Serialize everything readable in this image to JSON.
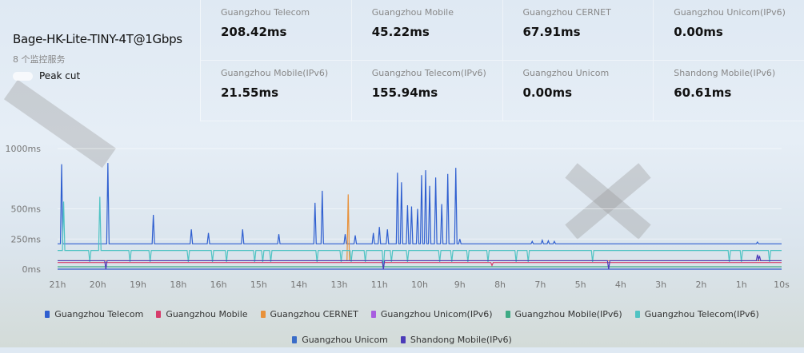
{
  "server": {
    "name": "Bage-HK-Lite-TINY-4T@1Gbps",
    "service_count": "8 个监控服务",
    "peak_cut_label": "Peak cut",
    "peak_cut_on": false
  },
  "stats": [
    {
      "label": "Guangzhou Telecom",
      "value": "208.42ms"
    },
    {
      "label": "Guangzhou Mobile",
      "value": "45.22ms"
    },
    {
      "label": "Guangzhou CERNET",
      "value": "67.91ms"
    },
    {
      "label": "Guangzhou Unicom(IPv6)",
      "value": "0.00ms"
    },
    {
      "label": "Guangzhou Mobile(IPv6)",
      "value": "21.55ms"
    },
    {
      "label": "Guangzhou Telecom(IPv6)",
      "value": "155.94ms"
    },
    {
      "label": "Guangzhou Unicom",
      "value": "0.00ms"
    },
    {
      "label": "Shandong Mobile(IPv6)",
      "value": "60.61ms"
    }
  ],
  "chart_data": {
    "type": "line",
    "ylim": [
      0,
      1000
    ],
    "y_ticks": [
      "0ms",
      "250ms",
      "500ms",
      "1000ms"
    ],
    "y_tick_values": [
      0,
      250,
      500,
      1000
    ],
    "x_ticks": [
      "21h",
      "20h",
      "19h",
      "18h",
      "16h",
      "15h",
      "14h",
      "13h",
      "11h",
      "10h",
      "9h",
      "8h",
      "7h",
      "5h",
      "4h",
      "3h",
      "2h",
      "1h",
      "10s"
    ],
    "x_tick_hours_ago": [
      21,
      20,
      19,
      18,
      16,
      15,
      14,
      13,
      11,
      10,
      9,
      8,
      7,
      5,
      4,
      3,
      2,
      1,
      0
    ],
    "grid": true,
    "legend_position": "bottom",
    "series": [
      {
        "name": "Guangzhou Telecom",
        "color": "#2f5fd0",
        "baseline": 210,
        "spikes": [
          [
            20.9,
            870
          ],
          [
            19.75,
            880
          ],
          [
            18.62,
            450
          ],
          [
            17.35,
            330
          ],
          [
            16.5,
            300
          ],
          [
            15.4,
            330
          ],
          [
            14.5,
            290
          ],
          [
            13.6,
            550
          ],
          [
            13.42,
            650
          ],
          [
            12.7,
            290
          ],
          [
            12.2,
            280
          ],
          [
            11.3,
            300
          ],
          [
            11.0,
            350
          ],
          [
            10.8,
            330
          ],
          [
            10.55,
            800
          ],
          [
            10.45,
            720
          ],
          [
            10.3,
            530
          ],
          [
            10.2,
            520
          ],
          [
            10.05,
            500
          ],
          [
            9.95,
            780
          ],
          [
            9.85,
            820
          ],
          [
            9.75,
            690
          ],
          [
            9.6,
            760
          ],
          [
            9.45,
            540
          ],
          [
            9.3,
            790
          ],
          [
            9.1,
            840
          ],
          [
            9.0,
            250
          ],
          [
            7.2,
            230
          ],
          [
            6.9,
            240
          ],
          [
            6.6,
            235
          ],
          [
            6.3,
            230
          ],
          [
            0.6,
            225
          ]
        ]
      },
      {
        "name": "Guangzhou Mobile",
        "color": "#d63c6b",
        "baseline": 55,
        "spikes": [
          [
            8.2,
            30
          ]
        ]
      },
      {
        "name": "Guangzhou CERNET",
        "color": "#e8913a",
        "baseline": 70,
        "spikes": [
          [
            12.55,
            620
          ]
        ]
      },
      {
        "name": "Guangzhou Unicom(IPv6)",
        "color": "#a85ee0",
        "baseline": 0,
        "spikes": []
      },
      {
        "name": "Guangzhou Mobile(IPv6)",
        "color": "#3daa84",
        "baseline": 20,
        "spikes": []
      },
      {
        "name": "Guangzhou Telecom(IPv6)",
        "color": "#4fc3c3",
        "baseline": 155,
        "spikes": [
          [
            20.85,
            560
          ],
          [
            20.2,
            60
          ],
          [
            19.95,
            600
          ],
          [
            19.2,
            60
          ],
          [
            18.7,
            60
          ],
          [
            17.5,
            60
          ],
          [
            16.3,
            60
          ],
          [
            15.8,
            60
          ],
          [
            15.1,
            60
          ],
          [
            14.9,
            60
          ],
          [
            14.7,
            60
          ],
          [
            13.55,
            60
          ],
          [
            12.9,
            60
          ],
          [
            12.4,
            60
          ],
          [
            11.7,
            60
          ],
          [
            10.9,
            0
          ],
          [
            10.7,
            60
          ],
          [
            10.3,
            60
          ],
          [
            9.5,
            60
          ],
          [
            9.2,
            60
          ],
          [
            8.8,
            60
          ],
          [
            8.3,
            60
          ],
          [
            7.6,
            60
          ],
          [
            7.3,
            60
          ],
          [
            4.7,
            60
          ],
          [
            1.3,
            60
          ],
          [
            1.0,
            60
          ],
          [
            0.3,
            60
          ]
        ]
      },
      {
        "name": "Guangzhou Unicom",
        "color": "#3a6cc8",
        "baseline": 0,
        "spikes": []
      },
      {
        "name": "Shandong Mobile(IPv6)",
        "color": "#4b3bb8",
        "baseline": 70,
        "spikes": [
          [
            19.8,
            0
          ],
          [
            10.9,
            0
          ],
          [
            4.3,
            0
          ],
          [
            0.6,
            120
          ],
          [
            0.55,
            110
          ]
        ]
      }
    ]
  }
}
